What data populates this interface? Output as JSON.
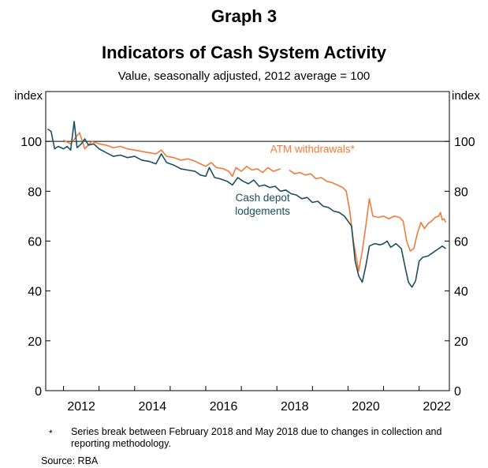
{
  "graph_label": "Graph 3",
  "footnote": {
    "marker": "*",
    "text": "Series break between February 2018 and May 2018 due to changes in collection and reporting methodology."
  },
  "source": "Source: RBA",
  "chart_data": {
    "type": "line",
    "title": "Indicators of Cash System Activity",
    "subtitle": "Value, seasonally adjusted, 2012 average = 100",
    "ylabel_left": "index",
    "ylabel_right": "index",
    "ylim": [
      0,
      120
    ],
    "xlim": [
      2011.5,
      2022.85
    ],
    "yticks": [
      0,
      20,
      40,
      60,
      80,
      100
    ],
    "xticks": [
      2012,
      2014,
      2016,
      2018,
      2020,
      2022
    ],
    "xtick_labels": [
      "2012",
      "2014",
      "2016",
      "2018",
      "2020",
      "2022"
    ],
    "reference_line": 100,
    "grid": false,
    "colors": {
      "atm": "#f07b3a",
      "cash": "#1b4f5f",
      "axis": "#000000"
    },
    "series": [
      {
        "name": "ATM withdrawals*",
        "color": "#f07b3a",
        "label_pos": [
          2019.0,
          95.5
        ],
        "segments": [
          [
            [
              2012.0,
              100.5
            ],
            [
              2012.2,
              99
            ],
            [
              2012.45,
              103.5
            ],
            [
              2012.6,
              97
            ],
            [
              2012.8,
              100
            ],
            [
              2013.0,
              99
            ],
            [
              2013.2,
              98.5
            ],
            [
              2013.4,
              97.5
            ],
            [
              2013.6,
              98
            ],
            [
              2013.8,
              97
            ],
            [
              2014.0,
              96.5
            ],
            [
              2014.2,
              96
            ],
            [
              2014.4,
              95.5
            ],
            [
              2014.6,
              95
            ],
            [
              2014.75,
              96.5
            ],
            [
              2014.9,
              94
            ],
            [
              2015.1,
              93.5
            ],
            [
              2015.3,
              92.5
            ],
            [
              2015.5,
              93
            ],
            [
              2015.7,
              92
            ],
            [
              2015.85,
              91
            ],
            [
              2016.0,
              90
            ],
            [
              2016.15,
              91.5
            ],
            [
              2016.3,
              89.5
            ],
            [
              2016.5,
              89
            ],
            [
              2016.65,
              88
            ],
            [
              2016.75,
              86
            ],
            [
              2016.85,
              89.5
            ],
            [
              2017.0,
              88
            ],
            [
              2017.15,
              90
            ],
            [
              2017.3,
              88.5
            ],
            [
              2017.45,
              89
            ],
            [
              2017.6,
              87.5
            ],
            [
              2017.75,
              89.5
            ],
            [
              2017.9,
              88
            ],
            [
              2018.1,
              89
            ]
          ],
          [
            [
              2018.35,
              88.5
            ],
            [
              2018.5,
              87
            ],
            [
              2018.65,
              87.5
            ],
            [
              2018.8,
              86.5
            ],
            [
              2018.95,
              87
            ],
            [
              2019.1,
              85
            ],
            [
              2019.25,
              85.5
            ],
            [
              2019.4,
              84
            ],
            [
              2019.55,
              83.5
            ],
            [
              2019.7,
              82.5
            ],
            [
              2019.85,
              81.5
            ],
            [
              2019.95,
              80
            ],
            [
              2020.05,
              72
            ],
            [
              2020.15,
              60
            ],
            [
              2020.3,
              48
            ],
            [
              2020.4,
              56
            ],
            [
              2020.5,
              66
            ],
            [
              2020.6,
              77
            ],
            [
              2020.7,
              70
            ],
            [
              2020.85,
              69.5
            ],
            [
              2021.0,
              70
            ],
            [
              2021.15,
              69
            ],
            [
              2021.3,
              70
            ],
            [
              2021.45,
              69.5
            ],
            [
              2021.55,
              68
            ],
            [
              2021.65,
              60
            ],
            [
              2021.75,
              56
            ],
            [
              2021.85,
              57
            ],
            [
              2021.95,
              63
            ],
            [
              2022.05,
              67.5
            ],
            [
              2022.15,
              65
            ],
            [
              2022.25,
              67
            ],
            [
              2022.35,
              68
            ],
            [
              2022.45,
              69.5
            ],
            [
              2022.55,
              70
            ],
            [
              2022.6,
              71.5
            ],
            [
              2022.65,
              68.5
            ],
            [
              2022.7,
              69
            ],
            [
              2022.75,
              67.5
            ]
          ]
        ]
      },
      {
        "name": "Cash depot lodgements",
        "color": "#1b4f5f",
        "label_pos": [
          2017.6,
          76.0
        ],
        "segments": [
          [
            [
              2011.55,
              105
            ],
            [
              2011.65,
              104
            ],
            [
              2011.75,
              97
            ],
            [
              2011.85,
              98
            ],
            [
              2012.0,
              97
            ],
            [
              2012.1,
              98
            ],
            [
              2012.2,
              96.5
            ],
            [
              2012.3,
              108
            ],
            [
              2012.38,
              97.5
            ],
            [
              2012.5,
              99
            ],
            [
              2012.6,
              101
            ],
            [
              2012.7,
              98.5
            ],
            [
              2012.85,
              99
            ],
            [
              2013.0,
              97
            ],
            [
              2013.2,
              95.5
            ],
            [
              2013.4,
              94
            ],
            [
              2013.6,
              94.5
            ],
            [
              2013.8,
              93.5
            ],
            [
              2014.0,
              94
            ],
            [
              2014.2,
              92.5
            ],
            [
              2014.4,
              92
            ],
            [
              2014.6,
              91
            ],
            [
              2014.75,
              95
            ],
            [
              2014.9,
              91.5
            ],
            [
              2015.1,
              90.5
            ],
            [
              2015.3,
              89
            ],
            [
              2015.5,
              88.5
            ],
            [
              2015.7,
              88
            ],
            [
              2015.85,
              86.5
            ],
            [
              2016.0,
              86
            ],
            [
              2016.1,
              89.5
            ],
            [
              2016.25,
              85.5
            ],
            [
              2016.4,
              85
            ],
            [
              2016.6,
              84
            ],
            [
              2016.75,
              82.5
            ],
            [
              2016.9,
              85.5
            ],
            [
              2017.05,
              84
            ],
            [
              2017.2,
              83
            ],
            [
              2017.35,
              84.5
            ],
            [
              2017.5,
              82
            ],
            [
              2017.65,
              82.5
            ],
            [
              2017.8,
              81.5
            ],
            [
              2017.95,
              82
            ],
            [
              2018.1,
              80
            ],
            [
              2018.25,
              80.5
            ],
            [
              2018.4,
              79
            ],
            [
              2018.55,
              78.5
            ],
            [
              2018.7,
              77
            ],
            [
              2018.85,
              77.5
            ],
            [
              2019.0,
              75.5
            ],
            [
              2019.15,
              76
            ],
            [
              2019.3,
              74
            ],
            [
              2019.45,
              73.5
            ],
            [
              2019.6,
              72
            ],
            [
              2019.75,
              71.5
            ],
            [
              2019.9,
              70
            ],
            [
              2020.0,
              68
            ],
            [
              2020.1,
              66
            ],
            [
              2020.2,
              52
            ],
            [
              2020.3,
              46
            ],
            [
              2020.4,
              43.5
            ],
            [
              2020.5,
              50
            ],
            [
              2020.6,
              58
            ],
            [
              2020.75,
              59
            ],
            [
              2020.9,
              58.5
            ],
            [
              2021.0,
              59
            ],
            [
              2021.1,
              60
            ],
            [
              2021.2,
              57.5
            ],
            [
              2021.35,
              59
            ],
            [
              2021.5,
              57
            ],
            [
              2021.6,
              50
            ],
            [
              2021.7,
              43.5
            ],
            [
              2021.8,
              41.5
            ],
            [
              2021.9,
              44
            ],
            [
              2022.0,
              52
            ],
            [
              2022.1,
              53.5
            ],
            [
              2022.25,
              54
            ],
            [
              2022.4,
              55.5
            ],
            [
              2022.55,
              57
            ],
            [
              2022.65,
              58
            ],
            [
              2022.75,
              57
            ]
          ]
        ]
      }
    ],
    "series_labels": [
      "ATM withdrawals*",
      "Cash depot\nlodgements"
    ]
  }
}
